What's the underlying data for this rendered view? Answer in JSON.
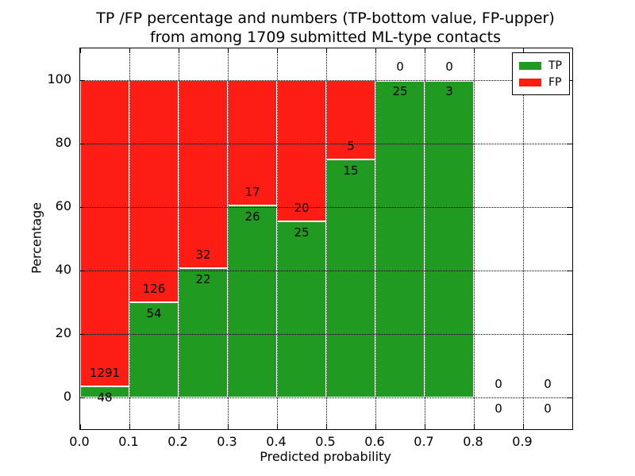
{
  "title": {
    "line1": "TP /FP percentage and numbers (TP-bottom value, FP-upper)",
    "line2": "from among 1709 submitted ML-type contacts"
  },
  "chart_data": {
    "type": "bar",
    "stacked": true,
    "normalized": "each bin stacked to 100%",
    "title": "TP /FP percentage and numbers (TP-bottom value, FP-upper) from among 1709 submitted ML-type contacts",
    "xlabel": "Predicted probability",
    "ylabel": "Percentage",
    "total_contacts": 1709,
    "bin_width": 0.1,
    "bins_start": [
      0.0,
      0.1,
      0.2,
      0.3,
      0.4,
      0.5,
      0.6,
      0.7,
      0.8,
      0.9
    ],
    "series": [
      {
        "name": "TP",
        "color": "#219a21",
        "counts": [
          48,
          54,
          22,
          26,
          25,
          15,
          25,
          3,
          0,
          0
        ]
      },
      {
        "name": "FP",
        "color": "#fd1d15",
        "counts": [
          1291,
          126,
          32,
          17,
          20,
          5,
          0,
          0,
          0,
          0
        ]
      }
    ],
    "tp_percent_of_bin": [
      3.6,
      30.0,
      40.7,
      60.5,
      55.6,
      75.0,
      100.0,
      100.0,
      0,
      0
    ],
    "x_tick_labels": [
      "0.0",
      "0.1",
      "0.2",
      "0.3",
      "0.4",
      "0.5",
      "0.6",
      "0.7",
      "0.8",
      "0.9"
    ],
    "y_tick_values": [
      0,
      20,
      40,
      60,
      80,
      100
    ],
    "xlim": [
      0.0,
      1.0
    ],
    "ylim": [
      -10,
      110
    ],
    "grid": "dotted black, on",
    "bar_edge_color": "#ffffff",
    "legend_position": "upper right"
  },
  "legend": {
    "items": [
      {
        "label": "TP",
        "color": "#219a21"
      },
      {
        "label": "FP",
        "color": "#fd1d15"
      }
    ]
  }
}
